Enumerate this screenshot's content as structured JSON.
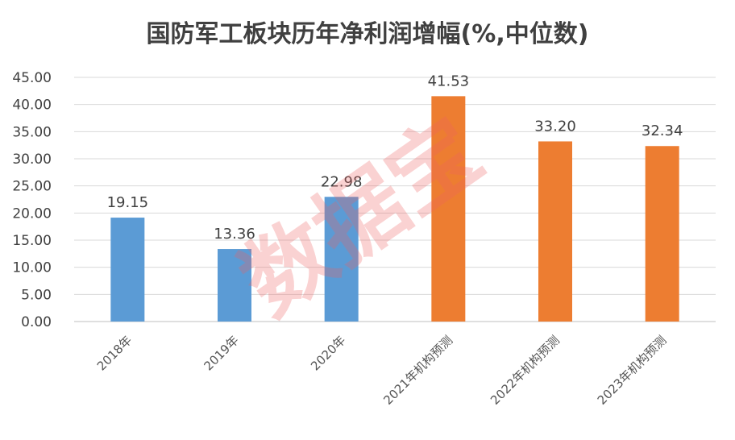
{
  "chart_data": {
    "type": "bar",
    "title": "国防军工板块历年净利润增幅(%,中位数)",
    "categories": [
      "2018年",
      "2019年",
      "2020年",
      "2021年机构预测",
      "2022年机构预测",
      "2023年机构预测"
    ],
    "values": [
      19.15,
      13.36,
      22.98,
      41.53,
      33.2,
      32.34
    ],
    "data_labels": [
      "19.15",
      "13.36",
      "22.98",
      "41.53",
      "33.20",
      "32.34"
    ],
    "bar_colors": [
      "#5b9bd5",
      "#5b9bd5",
      "#5b9bd5",
      "#ed7d31",
      "#ed7d31",
      "#ed7d31"
    ],
    "ylim": [
      0,
      45
    ],
    "yticks": [
      0,
      5,
      10,
      15,
      20,
      25,
      30,
      35,
      40,
      45
    ],
    "ytick_labels": [
      "0.00",
      "5.00",
      "10.00",
      "15.00",
      "20.00",
      "25.00",
      "30.00",
      "35.00",
      "40.00",
      "45.00"
    ],
    "grid": true,
    "legend": "none",
    "watermark": "数据宝"
  }
}
